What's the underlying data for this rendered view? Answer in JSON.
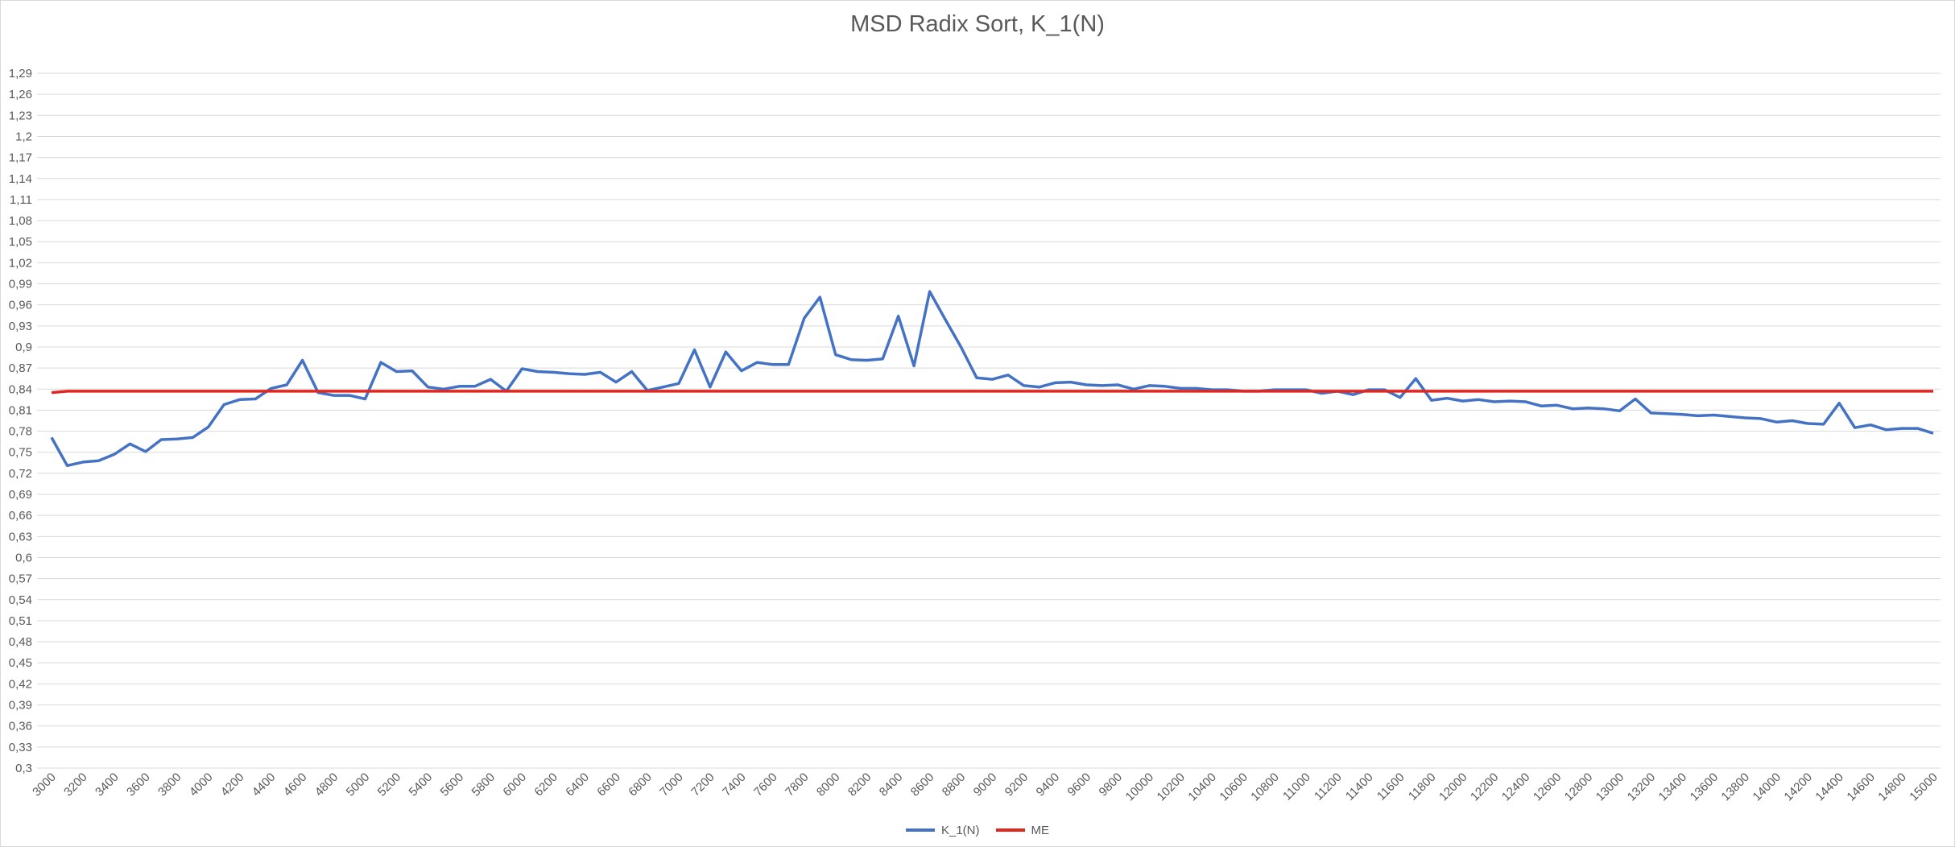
{
  "chart_data": {
    "type": "line",
    "title": "MSD Radix Sort, K_1(N)",
    "xlabel": "",
    "ylabel": "",
    "ylim": [
      0.3,
      1.29
    ],
    "y_step": 0.03,
    "y_ticks": [
      "0,3",
      "0,33",
      "0,36",
      "0,39",
      "0,42",
      "0,45",
      "0,48",
      "0,51",
      "0,54",
      "0,57",
      "0,6",
      "0,63",
      "0,66",
      "0,69",
      "0,72",
      "0,75",
      "0,78",
      "0,81",
      "0,84",
      "0,87",
      "0,9",
      "0,93",
      "0,96",
      "0,99",
      "1,02",
      "1,05",
      "1,08",
      "1,11",
      "1,14",
      "1,17",
      "1,2",
      "1,23",
      "1,26",
      "1,29"
    ],
    "x_ticks": [
      "3000",
      "3200",
      "3400",
      "3600",
      "3800",
      "4000",
      "4200",
      "4400",
      "4600",
      "4800",
      "5000",
      "5200",
      "5400",
      "5600",
      "5800",
      "6000",
      "6200",
      "6400",
      "6600",
      "6800",
      "7000",
      "7200",
      "7400",
      "7600",
      "7800",
      "8000",
      "8200",
      "8400",
      "8600",
      "8800",
      "9000",
      "9200",
      "9400",
      "9600",
      "9800",
      "10000",
      "10200",
      "10400",
      "10600",
      "10800",
      "11000",
      "11200",
      "11400",
      "11600",
      "11800",
      "12000",
      "12200",
      "12400",
      "12600",
      "12800",
      "13000",
      "13200",
      "13400",
      "13600",
      "13800",
      "14000",
      "14200",
      "14400",
      "14600",
      "14800",
      "15000"
    ],
    "x": [
      3000,
      3100,
      3200,
      3300,
      3400,
      3500,
      3600,
      3700,
      3800,
      3900,
      4000,
      4100,
      4200,
      4300,
      4400,
      4500,
      4600,
      4700,
      4800,
      4900,
      5000,
      5100,
      5200,
      5300,
      5400,
      5500,
      5600,
      5700,
      5800,
      5900,
      6000,
      6100,
      6200,
      6300,
      6400,
      6500,
      6600,
      6700,
      6800,
      6900,
      7000,
      7100,
      7200,
      7300,
      7400,
      7500,
      7600,
      7700,
      7800,
      7900,
      8000,
      8100,
      8200,
      8300,
      8400,
      8500,
      8600,
      8700,
      8800,
      8900,
      9000,
      9100,
      9200,
      9300,
      9400,
      9500,
      9600,
      9700,
      9800,
      9900,
      10000,
      10100,
      10200,
      10300,
      10400,
      10500,
      10600,
      10700,
      10800,
      10900,
      11000,
      11100,
      11200,
      11300,
      11400,
      11500,
      11600,
      11700,
      11800,
      11900,
      12000,
      12100,
      12200,
      12300,
      12400,
      12500,
      12600,
      12700,
      12800,
      12900,
      13000,
      13100,
      13200,
      13300,
      13400,
      13500,
      13600,
      13700,
      13800,
      13900,
      14000,
      14100,
      14200,
      14300,
      14400,
      14500,
      14600,
      14700,
      14800,
      14900,
      15000
    ],
    "series": [
      {
        "name": "K_1(N)",
        "color": "#4472C4",
        "values": [
          0.771,
          0.731,
          0.736,
          0.738,
          0.747,
          0.762,
          0.751,
          0.768,
          0.769,
          0.771,
          0.786,
          0.818,
          0.825,
          0.826,
          0.841,
          0.846,
          0.881,
          0.835,
          0.831,
          0.831,
          0.826,
          0.878,
          0.865,
          0.866,
          0.843,
          0.84,
          0.844,
          0.844,
          0.854,
          0.837,
          0.869,
          0.865,
          0.864,
          0.862,
          0.861,
          0.864,
          0.85,
          0.865,
          0.838,
          0.843,
          0.848,
          0.896,
          0.843,
          0.893,
          0.866,
          0.878,
          0.875,
          0.875,
          0.941,
          0.971,
          0.889,
          0.882,
          0.881,
          0.883,
          0.944,
          0.873,
          0.979,
          0.939,
          0.9,
          0.856,
          0.854,
          0.86,
          0.845,
          0.843,
          0.849,
          0.85,
          0.846,
          0.845,
          0.846,
          0.84,
          0.845,
          0.844,
          0.841,
          0.841,
          0.839,
          0.839,
          0.837,
          0.837,
          0.839,
          0.839,
          0.839,
          0.834,
          0.837,
          0.832,
          0.839,
          0.839,
          0.828,
          0.855,
          0.824,
          0.827,
          0.823,
          0.825,
          0.822,
          0.823,
          0.822,
          0.816,
          0.817,
          0.812,
          0.813,
          0.812,
          0.809,
          0.826,
          0.806,
          0.805,
          0.804,
          0.802,
          0.803,
          0.801,
          0.799,
          0.798,
          0.793,
          0.795,
          0.791,
          0.79,
          0.82,
          0.785,
          0.789,
          0.782,
          0.784,
          0.784,
          0.777
        ]
      },
      {
        "name": "ME",
        "color": "#E0271F",
        "values": [
          0.835,
          0.837,
          0.837,
          0.837,
          0.837,
          0.837,
          0.837,
          0.837,
          0.837,
          0.837,
          0.837,
          0.837,
          0.837,
          0.837,
          0.837,
          0.837,
          0.837,
          0.837,
          0.837,
          0.837,
          0.837,
          0.837,
          0.837,
          0.837,
          0.837,
          0.837,
          0.837,
          0.837,
          0.837,
          0.837,
          0.837,
          0.837,
          0.837,
          0.837,
          0.837,
          0.837,
          0.837,
          0.837,
          0.837,
          0.837,
          0.837,
          0.837,
          0.837,
          0.837,
          0.837,
          0.837,
          0.837,
          0.837,
          0.837,
          0.837,
          0.837,
          0.837,
          0.837,
          0.837,
          0.837,
          0.837,
          0.837,
          0.837,
          0.837,
          0.837,
          0.837,
          0.837,
          0.837,
          0.837,
          0.837,
          0.837,
          0.837,
          0.837,
          0.837,
          0.837,
          0.837,
          0.837,
          0.837,
          0.837,
          0.837,
          0.837,
          0.837,
          0.837,
          0.837,
          0.837,
          0.837,
          0.837,
          0.837,
          0.837,
          0.837,
          0.837,
          0.837,
          0.837,
          0.837,
          0.837,
          0.837,
          0.837,
          0.837,
          0.837,
          0.837,
          0.837,
          0.837,
          0.837,
          0.837,
          0.837,
          0.837,
          0.837,
          0.837,
          0.837,
          0.837,
          0.837,
          0.837,
          0.837,
          0.837,
          0.837,
          0.837,
          0.837,
          0.837,
          0.837,
          0.837,
          0.837,
          0.837,
          0.837,
          0.837,
          0.837,
          0.837
        ]
      }
    ],
    "grid": true,
    "legend_position": "bottom"
  }
}
